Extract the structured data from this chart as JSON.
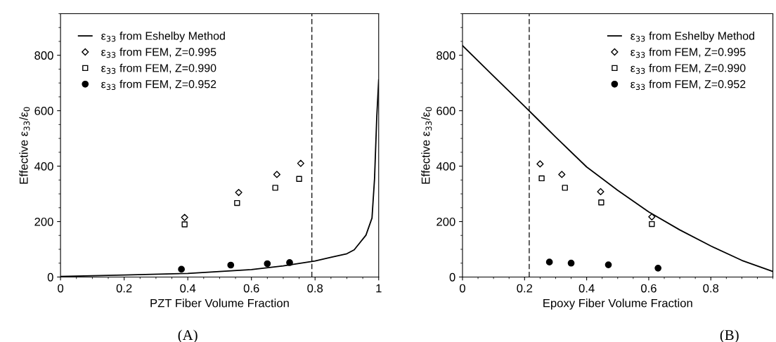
{
  "chart_data": [
    {
      "type": "line",
      "xlabel": "PZT Fiber Volume Fraction",
      "ylabel": "Effective ε$_{33}$/ε$_{0}$",
      "annotations": [
        "(A)"
      ],
      "xlim": [
        0,
        1
      ],
      "ylim": [
        0,
        950
      ],
      "xticks": [
        0,
        0.2,
        0.4,
        0.6,
        0.8,
        1
      ],
      "yticks": [
        0,
        200,
        400,
        600,
        800
      ],
      "legend": "top left",
      "grid": false,
      "ref_lines": [
        {
          "axis": "x",
          "value": 0.79,
          "color": "#000000",
          "line_style": "dashed"
        }
      ],
      "series": [
        {
          "name": "ε$_{33}$ from Eshelby Method",
          "color": "#000000",
          "marker": "none",
          "x": [
            0,
            0.2,
            0.4,
            0.6,
            0.7,
            0.8,
            0.85,
            0.9,
            0.923,
            0.96,
            0.979,
            0.987,
            0.994,
            1.0
          ],
          "values": [
            2,
            7,
            13,
            27,
            40,
            58,
            71,
            84,
            98,
            151,
            213,
            355,
            578,
            711
          ]
        },
        {
          "name": "ε$_{33}$ from FEM, Z=0.995",
          "type": "scatter",
          "color": "#000000",
          "marker": "diamond",
          "x": [
            0.39,
            0.56,
            0.68,
            0.755
          ],
          "values": [
            215,
            305,
            370,
            410
          ]
        },
        {
          "name": "ε$_{33}$ from FEM, Z=0.990",
          "type": "scatter",
          "color": "#000000",
          "marker": "square",
          "x": [
            0.39,
            0.555,
            0.675,
            0.75
          ],
          "values": [
            190,
            267,
            322,
            354
          ]
        },
        {
          "name": "ε$_{33}$ from FEM, Z=0.952",
          "type": "scatter",
          "color": "#000000",
          "marker": "circle",
          "x": [
            0.38,
            0.535,
            0.65,
            0.72
          ],
          "values": [
            28,
            43,
            48,
            52
          ]
        }
      ]
    },
    {
      "type": "line",
      "xlabel": "Epoxy Fiber Volume Fraction",
      "ylabel": "Effective ε$_{33}$/ε$_{0}$",
      "annotations": [
        "(B)"
      ],
      "xlim": [
        0,
        1
      ],
      "ylim": [
        0,
        950
      ],
      "xticks": [
        0,
        0.2,
        0.4,
        0.6,
        0.8
      ],
      "yticks": [
        0,
        200,
        400,
        600,
        800
      ],
      "legend": "top right",
      "grid": false,
      "ref_lines": [
        {
          "axis": "x",
          "value": 0.215,
          "color": "#000000",
          "line_style": "dashed"
        }
      ],
      "series": [
        {
          "name": "ε$_{33}$ from Eshelby Method",
          "color": "#000000",
          "marker": "none",
          "x": [
            0,
            0.1,
            0.2,
            0.3,
            0.4,
            0.5,
            0.6,
            0.7,
            0.8,
            0.9,
            1.0
          ],
          "values": [
            835,
            725,
            616,
            505,
            397,
            313,
            235,
            170,
            112,
            60,
            20
          ]
        },
        {
          "name": "ε$_{33}$ from FEM, Z=0.995",
          "type": "scatter",
          "color": "#000000",
          "marker": "diamond",
          "x": [
            0.25,
            0.32,
            0.445,
            0.61
          ],
          "values": [
            408,
            370,
            308,
            217
          ]
        },
        {
          "name": "ε$_{33}$ from FEM, Z=0.990",
          "type": "scatter",
          "color": "#000000",
          "marker": "square",
          "x": [
            0.255,
            0.33,
            0.447,
            0.61
          ],
          "values": [
            356,
            322,
            269,
            191
          ]
        },
        {
          "name": "ε$_{33}$ from FEM, Z=0.952",
          "type": "scatter",
          "color": "#000000",
          "marker": "circle",
          "x": [
            0.28,
            0.35,
            0.47,
            0.63
          ],
          "values": [
            54,
            50,
            44,
            32
          ]
        }
      ]
    }
  ]
}
